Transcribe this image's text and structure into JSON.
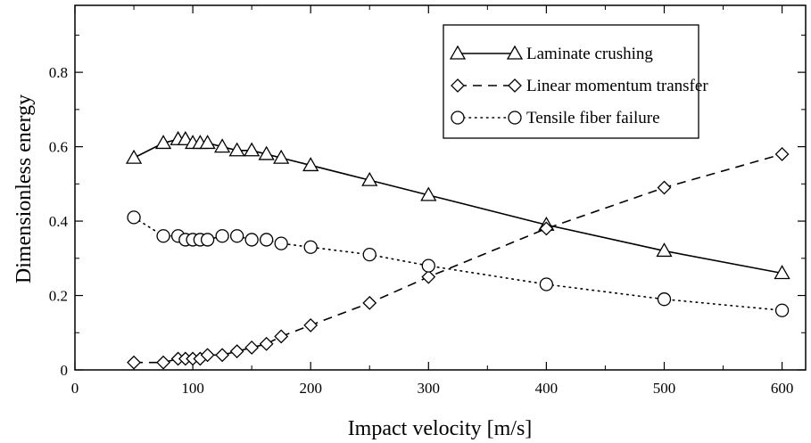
{
  "chart_data": {
    "type": "line",
    "title": "",
    "xlabel": "Impact velocity [m/s]",
    "ylabel": "Dimensionless energy",
    "xlim": [
      0,
      620
    ],
    "ylim": [
      0,
      0.98
    ],
    "xticks": [
      0,
      100,
      200,
      300,
      400,
      500,
      600
    ],
    "yticks": [
      0,
      0.2,
      0.4,
      0.6,
      0.8
    ],
    "xtick_labels": [
      "0",
      "100",
      "200",
      "300",
      "400",
      "500",
      "600"
    ],
    "ytick_labels": [
      "0",
      "0.2",
      "0.4",
      "0.6",
      "0.8"
    ],
    "grid": false,
    "legend_position": "top-right",
    "x": [
      50,
      75,
      87.5,
      93.75,
      100,
      106.25,
      112.5,
      125,
      137.5,
      150,
      162.5,
      175,
      200,
      250,
      300,
      400,
      500,
      600
    ],
    "series": [
      {
        "name": "Laminate crushing",
        "marker": "triangle",
        "line_style": "solid",
        "values": [
          0.57,
          0.61,
          0.62,
          0.62,
          0.61,
          0.61,
          0.61,
          0.6,
          0.59,
          0.59,
          0.58,
          0.57,
          0.55,
          0.51,
          0.47,
          0.39,
          0.32,
          0.26
        ]
      },
      {
        "name": "Linear momentum transfer",
        "marker": "diamond",
        "line_style": "dashed",
        "values": [
          0.02,
          0.02,
          0.03,
          0.03,
          0.03,
          0.03,
          0.04,
          0.04,
          0.05,
          0.06,
          0.07,
          0.09,
          0.12,
          0.18,
          0.25,
          0.38,
          0.49,
          0.58
        ]
      },
      {
        "name": "Tensile fiber failure",
        "marker": "circle",
        "line_style": "dotted",
        "values": [
          0.41,
          0.36,
          0.36,
          0.35,
          0.35,
          0.35,
          0.35,
          0.36,
          0.36,
          0.35,
          0.35,
          0.34,
          0.33,
          0.31,
          0.28,
          0.23,
          0.19,
          0.16
        ]
      }
    ]
  }
}
